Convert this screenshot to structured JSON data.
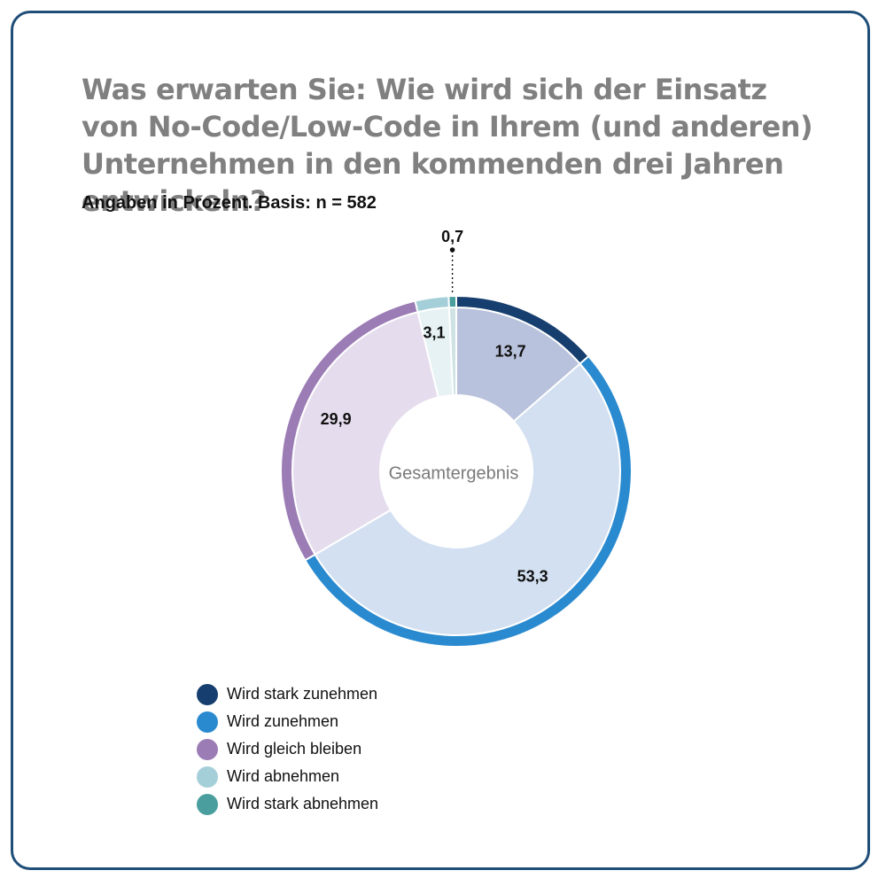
{
  "header": {
    "title": "Was erwarten Sie: Wie wird sich der Einsatz von No-Code/Low-Code in Ihrem (und anderen) Unternehmen in den kommenden drei Jahren entwickeln?",
    "subtitle": "Angaben in Prozent. Basis: n = 582"
  },
  "chart_data": {
    "type": "pie",
    "title": "Was erwarten Sie: Wie wird sich der Einsatz von No-Code/Low-Code in Ihrem (und anderen) Unternehmen in den kommenden drei Jahren entwickeln?",
    "subtitle": "Angaben in Prozent. Basis: n = 582",
    "center_label": "Gesamtergebnis",
    "legend_position": "bottom-left",
    "categories": [
      "Wird stark zunehmen",
      "Wird zunehmen",
      "Wird gleich bleiben",
      "Wird abnehmen",
      "Wird stark abnehmen"
    ],
    "values": [
      13.7,
      53.3,
      29.9,
      3.1,
      0.7
    ],
    "value_labels": [
      "13,7",
      "53,3",
      "29,9",
      "3,1",
      "0,7"
    ],
    "colors": [
      "#163e6e",
      "#2a8ad0",
      "#9b7cb5",
      "#a5cfd8",
      "#4a9e9e"
    ],
    "fill_colors": [
      "#b9c2dc",
      "#d3e0f1",
      "#e5ddee",
      "#e6f2f4",
      "#cfe2e4"
    ]
  }
}
